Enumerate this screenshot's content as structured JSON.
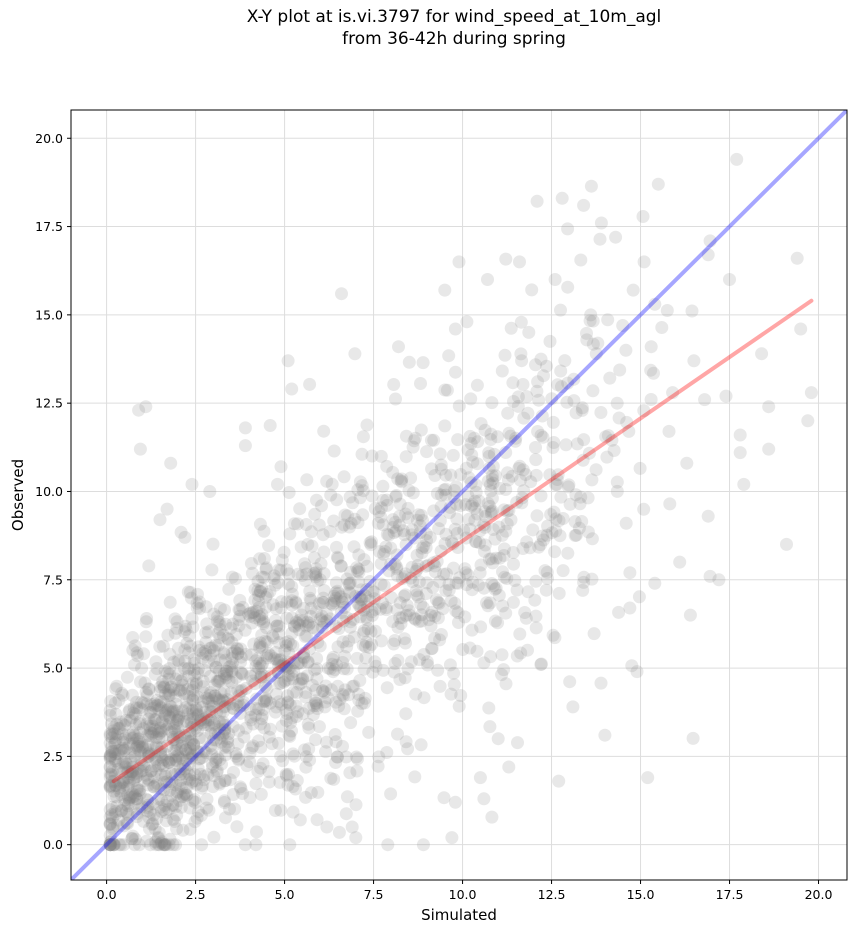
{
  "chart_data": {
    "type": "scatter",
    "title_lines": [
      "X-Y plot at is.vi.3797 for wind_speed_at_10m_agl",
      "from 36-42h during spring"
    ],
    "xlabel": "Simulated",
    "ylabel": "Observed",
    "xlim": [
      -1.0,
      20.8
    ],
    "ylim": [
      -1.0,
      20.8
    ],
    "xticks": [
      0.0,
      2.5,
      5.0,
      7.5,
      10.0,
      12.5,
      15.0,
      17.5,
      20.0
    ],
    "yticks": [
      0.0,
      2.5,
      5.0,
      7.5,
      10.0,
      12.5,
      15.0,
      17.5,
      20.0
    ],
    "xtick_labels": [
      "0.0",
      "2.5",
      "5.0",
      "7.5",
      "10.0",
      "12.5",
      "15.0",
      "17.5",
      "20.0"
    ],
    "ytick_labels": [
      "0.0",
      "2.5",
      "5.0",
      "7.5",
      "10.0",
      "12.5",
      "15.0",
      "17.5",
      "20.0"
    ],
    "grid": true,
    "point_color": "#808080",
    "point_opacity": 0.18,
    "lines": [
      {
        "kind": "one-to-one",
        "color": "#0000ff",
        "opacity": 0.35,
        "x": [
          -1.0,
          20.8
        ],
        "y": [
          -1.0,
          20.8
        ]
      },
      {
        "kind": "regression",
        "color": "#ff0000",
        "opacity": 0.35,
        "x": [
          0.2,
          19.8
        ],
        "y": [
          1.8,
          15.4
        ]
      }
    ],
    "point_count": 2000,
    "points": [
      [
        0.9,
        12.3
      ],
      [
        1.1,
        12.4
      ],
      [
        0.95,
        11.2
      ],
      [
        1.8,
        10.8
      ],
      [
        2.4,
        10.2
      ],
      [
        2.9,
        10.0
      ],
      [
        1.7,
        9.5
      ],
      [
        5.1,
        13.7
      ],
      [
        5.2,
        12.9
      ],
      [
        6.6,
        15.6
      ],
      [
        9.9,
        16.5
      ],
      [
        10.7,
        16.0
      ],
      [
        11.6,
        16.5
      ],
      [
        12.6,
        16.0
      ],
      [
        12.8,
        18.3
      ],
      [
        13.4,
        18.1
      ],
      [
        13.9,
        17.6
      ],
      [
        14.3,
        17.2
      ],
      [
        15.5,
        18.7
      ],
      [
        17.7,
        19.4
      ],
      [
        16.9,
        16.7
      ],
      [
        17.5,
        16.0
      ],
      [
        19.4,
        16.6
      ],
      [
        19.5,
        14.6
      ],
      [
        19.8,
        12.8
      ],
      [
        19.7,
        12.0
      ],
      [
        18.6,
        12.4
      ],
      [
        18.4,
        13.9
      ],
      [
        17.9,
        10.2
      ],
      [
        17.2,
        7.5
      ],
      [
        18.6,
        11.2
      ],
      [
        19.1,
        8.5
      ],
      [
        14.9,
        4.9
      ],
      [
        15.2,
        1.9
      ],
      [
        14.0,
        3.1
      ],
      [
        13.1,
        3.9
      ],
      [
        12.2,
        5.1
      ],
      [
        11.0,
        3.0
      ],
      [
        11.3,
        2.2
      ],
      [
        12.7,
        1.8
      ],
      [
        10.6,
        1.3
      ],
      [
        10.5,
        1.9
      ],
      [
        9.8,
        1.2
      ],
      [
        9.7,
        0.2
      ],
      [
        8.9,
        0.0
      ],
      [
        7.9,
        0.0
      ],
      [
        7.0,
        0.2
      ],
      [
        6.9,
        0.5
      ],
      [
        15.4,
        7.4
      ],
      [
        16.4,
        6.5
      ],
      [
        16.1,
        8.0
      ],
      [
        14.7,
        6.7
      ],
      [
        14.7,
        7.7
      ],
      [
        16.9,
        9.3
      ],
      [
        17.8,
        11.1
      ],
      [
        17.8,
        11.6
      ],
      [
        16.3,
        10.8
      ],
      [
        15.8,
        11.7
      ],
      [
        16.8,
        12.6
      ],
      [
        17.4,
        12.7
      ],
      [
        16.5,
        13.7
      ],
      [
        15.9,
        12.8
      ],
      [
        15.3,
        14.1
      ],
      [
        15.4,
        15.3
      ],
      [
        15.1,
        16.5
      ],
      [
        13.8,
        14.2
      ],
      [
        14.5,
        14.7
      ],
      [
        13.6,
        15.0
      ],
      [
        8.2,
        14.1
      ],
      [
        9.5,
        15.7
      ],
      [
        9.8,
        14.6
      ],
      [
        3.9,
        11.8
      ],
      [
        3.9,
        11.3
      ],
      [
        4.8,
        10.2
      ],
      [
        4.9,
        10.7
      ],
      [
        2.2,
        8.7
      ],
      [
        1.5,
        9.2
      ]
    ]
  }
}
